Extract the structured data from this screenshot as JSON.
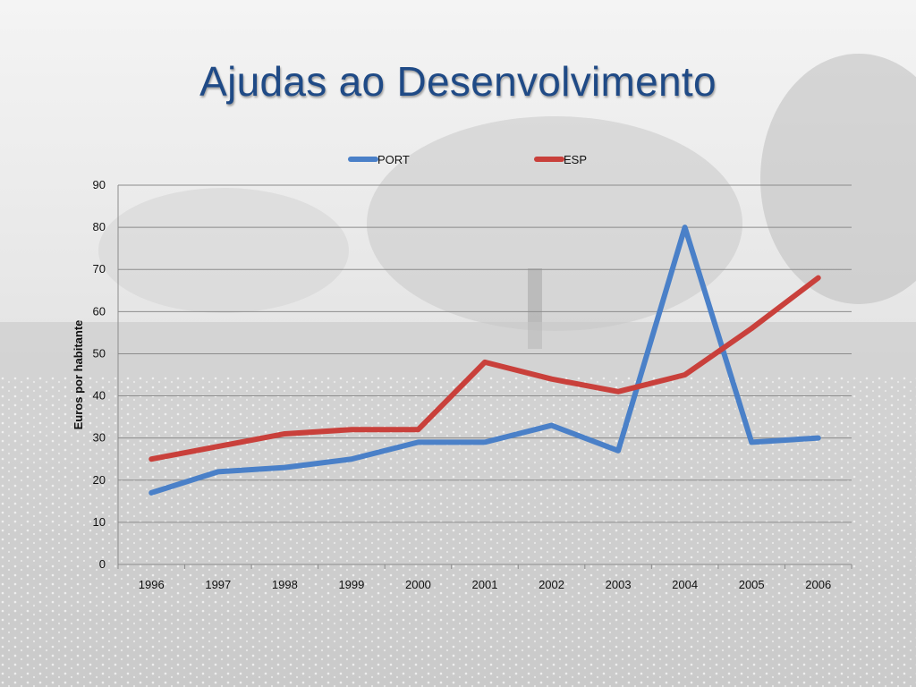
{
  "slide": {
    "title": "Ajudas ao Desenvolvimento"
  },
  "colors": {
    "port": "#4a80c8",
    "esp": "#c9403b",
    "title": "#1f4a86",
    "grid": "#8c8c8c"
  },
  "chart_data": {
    "type": "line",
    "title": "",
    "xlabel": "",
    "ylabel": "Euros por habitante",
    "categories": [
      "1996",
      "1997",
      "1998",
      "1999",
      "2000",
      "2001",
      "2002",
      "2003",
      "2004",
      "2005",
      "2006"
    ],
    "ylim": [
      0,
      90
    ],
    "yticks": [
      0,
      10,
      20,
      30,
      40,
      50,
      60,
      70,
      80,
      90
    ],
    "grid": true,
    "legend_position": "top",
    "series": [
      {
        "name": "PORT",
        "color": "#4a80c8",
        "values": [
          17,
          22,
          23,
          25,
          29,
          29,
          33,
          27,
          80,
          29,
          30
        ]
      },
      {
        "name": "ESP",
        "color": "#c9403b",
        "values": [
          25,
          28,
          31,
          32,
          32,
          48,
          44,
          41,
          45,
          56,
          68
        ]
      }
    ]
  }
}
